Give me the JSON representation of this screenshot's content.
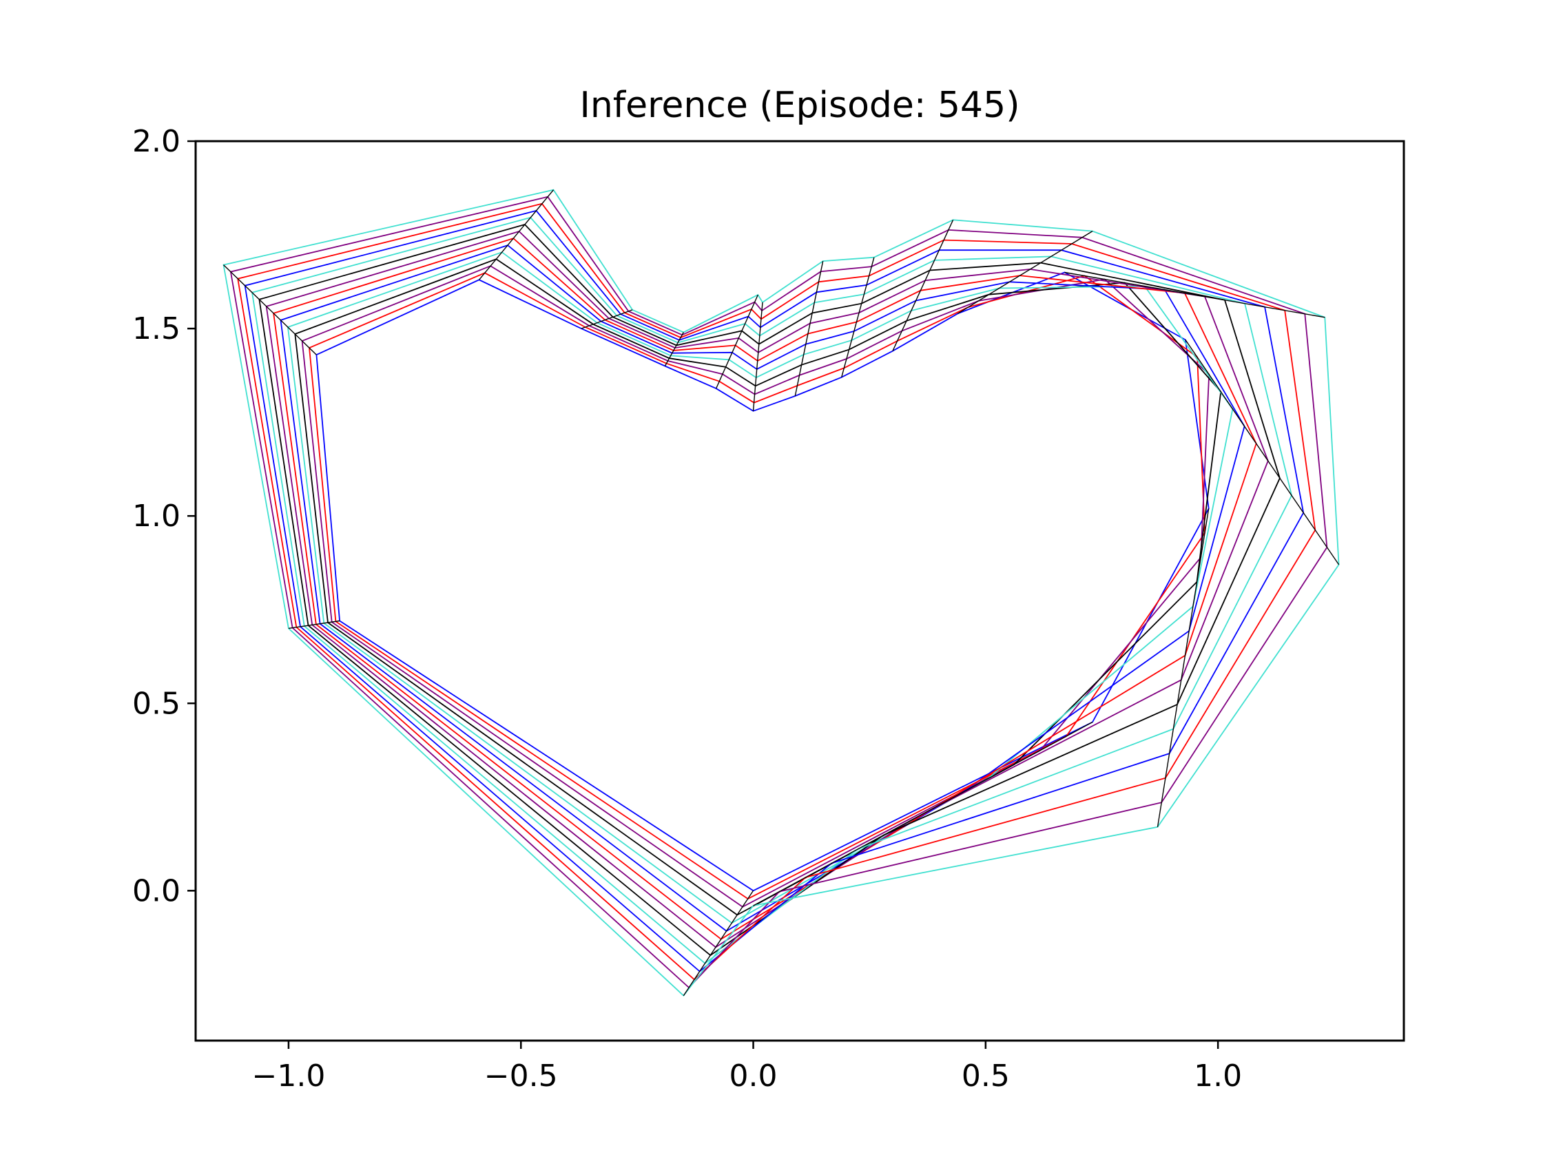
{
  "chart_data": {
    "type": "line",
    "title": "Inference (Episode: 545)",
    "xlabel": "",
    "ylabel": "",
    "xlim": [
      -1.2,
      1.4
    ],
    "ylim": [
      -0.4,
      2.0
    ],
    "xticks": [
      -1.0,
      -0.5,
      0.0,
      0.5,
      1.0
    ],
    "xtick_labels": [
      "−1.0",
      "−0.5",
      "0.0",
      "0.5",
      "1.0"
    ],
    "yticks": [
      0.0,
      0.5,
      1.0,
      1.5,
      2.0
    ],
    "ytick_labels": [
      "0.0",
      "0.5",
      "1.0",
      "1.5",
      "2.0"
    ],
    "grid": false,
    "legend": "none",
    "ring_colors": [
      "#0000ff",
      "#ff0000",
      "#800080",
      "#000000",
      "#40e0d0",
      "#0000ff",
      "#ff0000",
      "#800080",
      "#000000",
      "#40e0d0",
      "#0000ff",
      "#ff0000",
      "#800080",
      "#40e0d0"
    ],
    "spoke_color": "#000000",
    "inner_polygon": [
      [
        0.0,
        0.0
      ],
      [
        -0.89,
        0.72
      ],
      [
        -0.94,
        1.43
      ],
      [
        -0.59,
        1.63
      ],
      [
        -0.37,
        1.5
      ],
      [
        -0.19,
        1.4
      ],
      [
        -0.08,
        1.34
      ],
      [
        0.0,
        1.28
      ],
      [
        0.09,
        1.32
      ],
      [
        0.19,
        1.37
      ],
      [
        0.3,
        1.44
      ],
      [
        0.44,
        1.54
      ],
      [
        0.67,
        1.65
      ],
      [
        0.93,
        1.47
      ],
      [
        0.98,
        1.02
      ],
      [
        0.73,
        0.45
      ]
    ],
    "outer_polygon": [
      [
        -0.15,
        -0.28
      ],
      [
        -1.0,
        0.7
      ],
      [
        -1.14,
        1.67
      ],
      [
        -0.43,
        1.87
      ],
      [
        -0.26,
        1.55
      ],
      [
        -0.15,
        1.49
      ],
      [
        0.01,
        1.59
      ],
      [
        0.02,
        1.57
      ],
      [
        0.15,
        1.68
      ],
      [
        0.26,
        1.69
      ],
      [
        0.43,
        1.79
      ],
      [
        0.73,
        1.76
      ],
      [
        1.23,
        1.53
      ],
      [
        1.26,
        0.87
      ],
      [
        0.87,
        0.17
      ],
      [
        0.0,
        -0.04
      ]
    ]
  }
}
